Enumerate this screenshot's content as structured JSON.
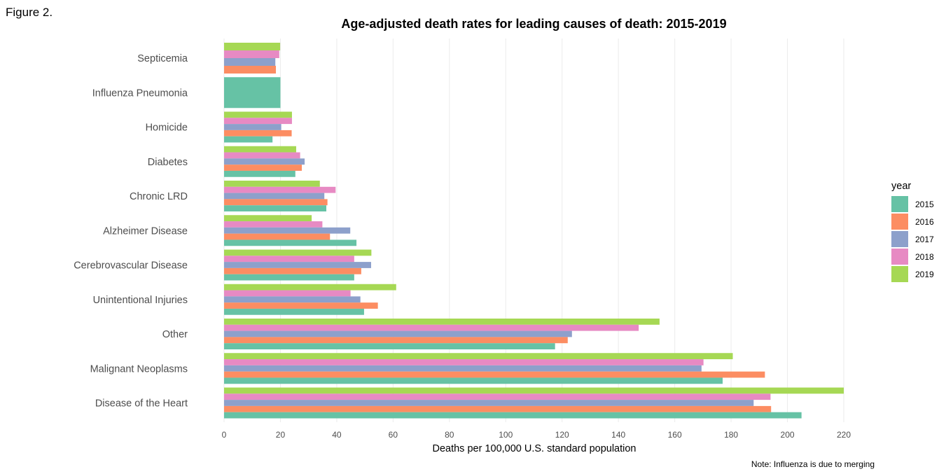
{
  "figure_label": "Figure 2.",
  "caption": "Note: Influenza is due to merging",
  "chart_data": {
    "type": "bar",
    "orientation": "horizontal",
    "grouped": true,
    "title": "Age-adjusted death rates for leading causes of death: 2015-2019",
    "xlabel": "Deaths per 100,000 U.S. standard population",
    "ylabel": "",
    "xlim": [
      0,
      220
    ],
    "xticks": [
      0,
      20,
      40,
      60,
      80,
      100,
      120,
      140,
      160,
      180,
      200,
      220
    ],
    "grid": true,
    "legend": {
      "title": "year",
      "placement": "right"
    },
    "categories": [
      "Disease of the Heart",
      "Malignant Neoplasms",
      "Other",
      "Unintentional Injuries",
      "Cerebrovascular Disease",
      "Alzheimer Disease",
      "Chronic LRD",
      "Diabetes",
      "Homicide",
      "Influenza Pneumonia",
      "Septicemia"
    ],
    "series": [
      {
        "name": "2015",
        "color": "#66c2a5",
        "values": [
          205.0,
          177.0,
          117.5,
          49.7,
          46.2,
          47.0,
          36.3,
          25.3,
          17.2,
          20.0,
          null
        ]
      },
      {
        "name": "2016",
        "color": "#fc8d62",
        "values": [
          194.2,
          192.0,
          122.0,
          54.6,
          48.7,
          37.6,
          36.7,
          27.6,
          24.0,
          null,
          18.4
        ]
      },
      {
        "name": "2017",
        "color": "#8da0cb",
        "values": [
          188.0,
          169.5,
          123.5,
          48.4,
          52.2,
          44.8,
          35.6,
          28.6,
          20.3,
          null,
          18.2
        ]
      },
      {
        "name": "2018",
        "color": "#e78ac3",
        "values": [
          194.0,
          170.2,
          147.2,
          44.9,
          46.2,
          34.9,
          39.6,
          27.0,
          24.1,
          null,
          19.6
        ]
      },
      {
        "name": "2019",
        "color": "#a6d854",
        "values": [
          220.0,
          180.6,
          154.6,
          61.1,
          52.3,
          31.1,
          34.0,
          25.6,
          24.1,
          null,
          19.9
        ]
      }
    ]
  }
}
